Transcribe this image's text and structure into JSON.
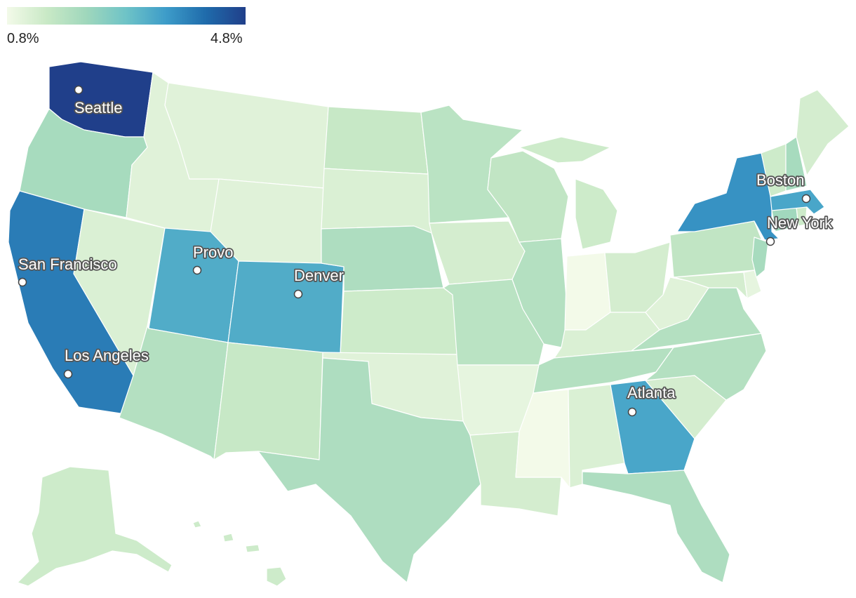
{
  "legend": {
    "min_label": "0.8%",
    "max_label": "4.8%",
    "min_value": 0.8,
    "max_value": 4.8,
    "colors": [
      "#f3fae9",
      "#c9e9c6",
      "#9fd7bc",
      "#6ec3c7",
      "#3d9cc9",
      "#1f6bab",
      "#203f8a"
    ]
  },
  "regions": [
    {
      "id": "WA",
      "value": 4.8
    },
    {
      "id": "OR",
      "value": 2.0
    },
    {
      "id": "CA",
      "value": 3.9
    },
    {
      "id": "NV",
      "value": 1.2
    },
    {
      "id": "ID",
      "value": 1.1
    },
    {
      "id": "MT",
      "value": 1.1
    },
    {
      "id": "WY",
      "value": 1.1
    },
    {
      "id": "UT",
      "value": 3.2
    },
    {
      "id": "CO",
      "value": 3.2
    },
    {
      "id": "AZ",
      "value": 1.8
    },
    {
      "id": "NM",
      "value": 1.5
    },
    {
      "id": "ND",
      "value": 1.5
    },
    {
      "id": "SD",
      "value": 1.2
    },
    {
      "id": "NE",
      "value": 1.9
    },
    {
      "id": "KS",
      "value": 1.4
    },
    {
      "id": "OK",
      "value": 1.1
    },
    {
      "id": "TX",
      "value": 1.9
    },
    {
      "id": "MN",
      "value": 1.7
    },
    {
      "id": "IA",
      "value": 1.3
    },
    {
      "id": "MO",
      "value": 1.7
    },
    {
      "id": "AR",
      "value": 1.0
    },
    {
      "id": "LA",
      "value": 1.3
    },
    {
      "id": "WI",
      "value": 1.6
    },
    {
      "id": "IL",
      "value": 1.8
    },
    {
      "id": "MI",
      "value": 1.4
    },
    {
      "id": "IN",
      "value": 0.8
    },
    {
      "id": "OH",
      "value": 1.3
    },
    {
      "id": "KY",
      "value": 1.2
    },
    {
      "id": "TN",
      "value": 1.8
    },
    {
      "id": "MS",
      "value": 0.8
    },
    {
      "id": "AL",
      "value": 1.2
    },
    {
      "id": "GA",
      "value": 3.3
    },
    {
      "id": "FL",
      "value": 1.9
    },
    {
      "id": "SC",
      "value": 1.3
    },
    {
      "id": "NC",
      "value": 1.8
    },
    {
      "id": "VA",
      "value": 1.8
    },
    {
      "id": "WV",
      "value": 1.1
    },
    {
      "id": "PA",
      "value": 1.6
    },
    {
      "id": "NY",
      "value": 3.6
    },
    {
      "id": "NJ",
      "value": 2.0
    },
    {
      "id": "DE",
      "value": 1.0
    },
    {
      "id": "MD",
      "value": 1.3
    },
    {
      "id": "CT",
      "value": 2.1
    },
    {
      "id": "RI",
      "value": 1.4
    },
    {
      "id": "MA",
      "value": 3.3
    },
    {
      "id": "VT",
      "value": 1.4
    },
    {
      "id": "NH",
      "value": 2.0
    },
    {
      "id": "ME",
      "value": 1.3
    },
    {
      "id": "AK",
      "value": 1.4
    },
    {
      "id": "HI",
      "value": 1.4
    }
  ],
  "cities": [
    {
      "id": "seattle",
      "name": "Seattle"
    },
    {
      "id": "san-francisco",
      "name": "San Francisco"
    },
    {
      "id": "los-angeles",
      "name": "Los Angeles"
    },
    {
      "id": "provo",
      "name": "Provo"
    },
    {
      "id": "denver",
      "name": "Denver"
    },
    {
      "id": "atlanta",
      "name": "Atlanta"
    },
    {
      "id": "boston",
      "name": "Boston"
    },
    {
      "id": "new-york",
      "name": "New York"
    }
  ]
}
